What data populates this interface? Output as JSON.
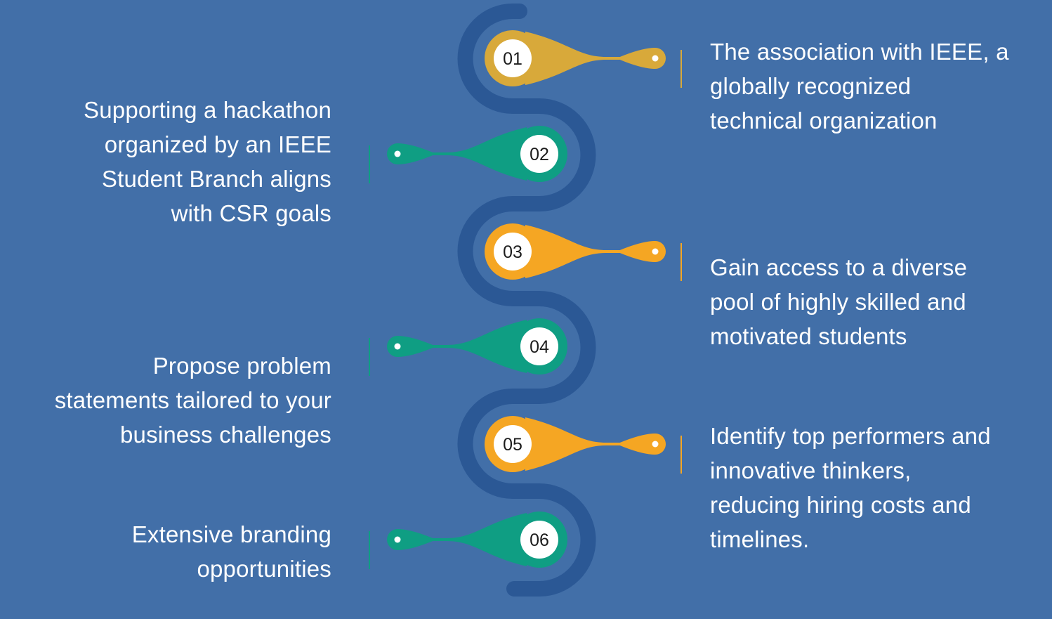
{
  "colors": {
    "background": "#426fa8",
    "path": "#2b5895",
    "gold": "#d8a93a",
    "orange": "#f5a623",
    "teal": "#0f9e83",
    "white": "#ffffff"
  },
  "milestones": [
    {
      "number": "01",
      "side": "right",
      "color": "gold",
      "lines": [
        "The association with IEEE, a",
        "globally recognized",
        "technical organization"
      ]
    },
    {
      "number": "02",
      "side": "left",
      "color": "teal",
      "lines": [
        "Supporting a hackathon",
        "organized by an IEEE",
        "Student Branch aligns",
        "with CSR goals"
      ]
    },
    {
      "number": "03",
      "side": "right",
      "color": "orange",
      "lines": [
        "Gain access to a diverse",
        "pool of highly skilled and",
        "motivated students"
      ]
    },
    {
      "number": "04",
      "side": "left",
      "color": "teal",
      "lines": [
        "Propose problem",
        "statements tailored to your",
        "business challenges"
      ]
    },
    {
      "number": "05",
      "side": "right",
      "color": "orange",
      "lines": [
        "Identify top performers and",
        "innovative thinkers,",
        "reducing hiring costs and",
        "timelines."
      ]
    },
    {
      "number": "06",
      "side": "left",
      "color": "teal",
      "lines": [
        "Extensive branding",
        "opportunities"
      ]
    }
  ]
}
